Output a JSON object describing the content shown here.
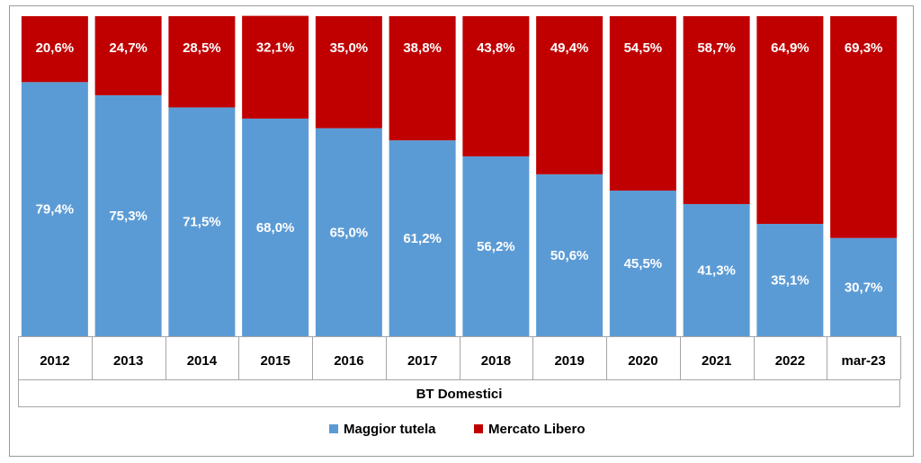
{
  "chart_data": {
    "type": "bar",
    "stacked": true,
    "percent_stacked": true,
    "categories": [
      "2012",
      "2013",
      "2014",
      "2015",
      "2016",
      "2017",
      "2018",
      "2019",
      "2020",
      "2021",
      "2022",
      "mar-23"
    ],
    "group_label": "BT Domestici",
    "series": [
      {
        "name": "Maggior tutela",
        "color": "#5b9bd5",
        "values": [
          79.4,
          75.3,
          71.5,
          68.0,
          65.0,
          61.2,
          56.2,
          50.6,
          45.5,
          41.3,
          35.1,
          30.7
        ],
        "labels": [
          "79,4%",
          "75,3%",
          "71,5%",
          "68,0%",
          "65,0%",
          "61,2%",
          "56,2%",
          "50,6%",
          "45,5%",
          "41,3%",
          "35,1%",
          "30,7%"
        ]
      },
      {
        "name": "Mercato Libero",
        "color": "#c00000",
        "values": [
          20.6,
          24.7,
          28.5,
          32.1,
          35.0,
          38.8,
          43.8,
          49.4,
          54.5,
          58.7,
          64.9,
          69.3
        ],
        "labels": [
          "20,6%",
          "24,7%",
          "28,5%",
          "32,1%",
          "35,0%",
          "38,8%",
          "43,8%",
          "49,4%",
          "54,5%",
          "58,7%",
          "64,9%",
          "69,3%"
        ]
      }
    ],
    "ylim": [
      0,
      100
    ],
    "grid": false,
    "legend_position": "bottom"
  }
}
